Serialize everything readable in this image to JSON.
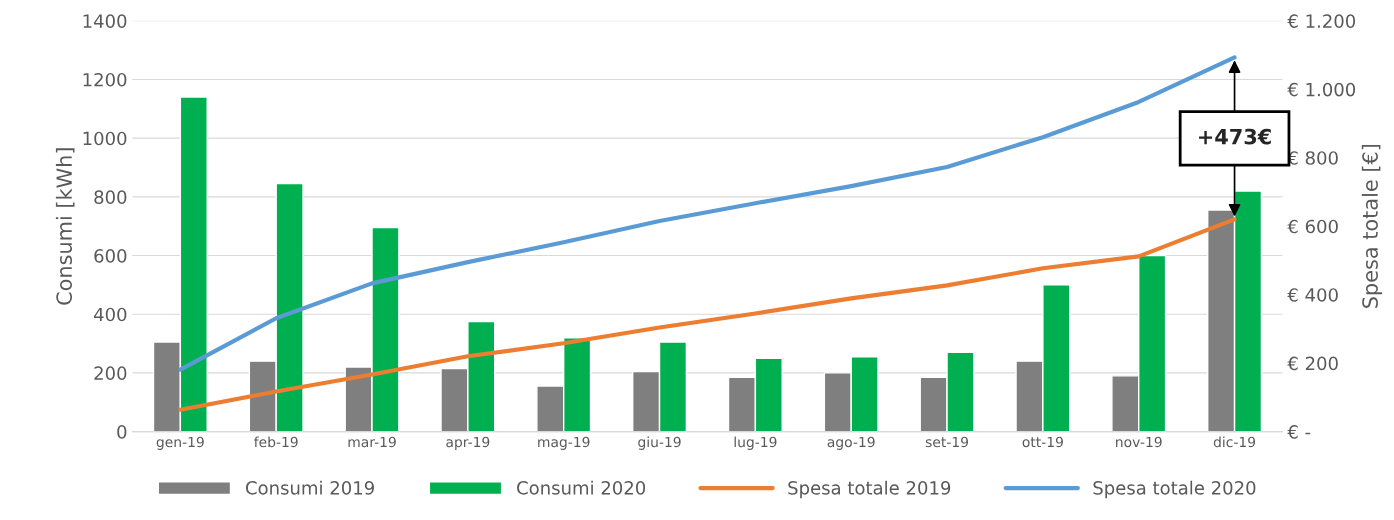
{
  "chart_data": {
    "type": "bar",
    "categories": [
      "gen-19",
      "feb-19",
      "mar-19",
      "apr-19",
      "mag-19",
      "giu-19",
      "lug-19",
      "ago-19",
      "set-19",
      "ott-19",
      "nov-19",
      "dic-19"
    ],
    "ylabel": "Consumi [kWh]",
    "y2label": "Spesa totale [€]",
    "series": [
      {
        "name": "Consumi 2019",
        "color": "#7f7f7f",
        "values": [
          305,
          240,
          220,
          215,
          155,
          205,
          185,
          200,
          185,
          240,
          190,
          755
        ]
      },
      {
        "name": "Consumi 2020",
        "color": "#00b050",
        "values": [
          1140,
          845,
          695,
          375,
          320,
          305,
          250,
          255,
          270,
          500,
          600,
          820
        ]
      },
      {
        "name": "Spesa totale 2019",
        "type": "line",
        "axis": "y2",
        "color": "#ed7d31",
        "values": [
          64,
          117,
          167,
          220,
          258,
          304,
          345,
          389,
          427,
          477,
          512,
          620
        ]
      },
      {
        "name": "Spesa totale 2020",
        "type": "line",
        "axis": "y2",
        "color": "#5b9bd5",
        "values": [
          181,
          331,
          433,
          495,
          553,
          615,
          667,
          717,
          773,
          860,
          963,
          1093
        ]
      }
    ],
    "ylim": [
      0,
      1400
    ],
    "yticks": [
      0,
      200,
      400,
      600,
      800,
      1000,
      1200,
      1400
    ],
    "y2lim": [
      0,
      1200
    ],
    "y2ticks": [
      {
        "value": 0,
        "label": "€ -"
      },
      {
        "value": 200,
        "label": "€ 200"
      },
      {
        "value": 400,
        "label": "€ 400"
      },
      {
        "value": 600,
        "label": "€ 600"
      },
      {
        "value": 800,
        "label": "€ 800"
      },
      {
        "value": 1000,
        "label": "€ 1.000"
      },
      {
        "value": 1200,
        "label": "€ 1.200"
      }
    ],
    "annotations": [
      {
        "text": "+473€",
        "x": "dic-19",
        "y": 1275
      }
    ],
    "grid": "y",
    "legend": "bottom",
    "marker": "none",
    "line_style": "solid"
  }
}
